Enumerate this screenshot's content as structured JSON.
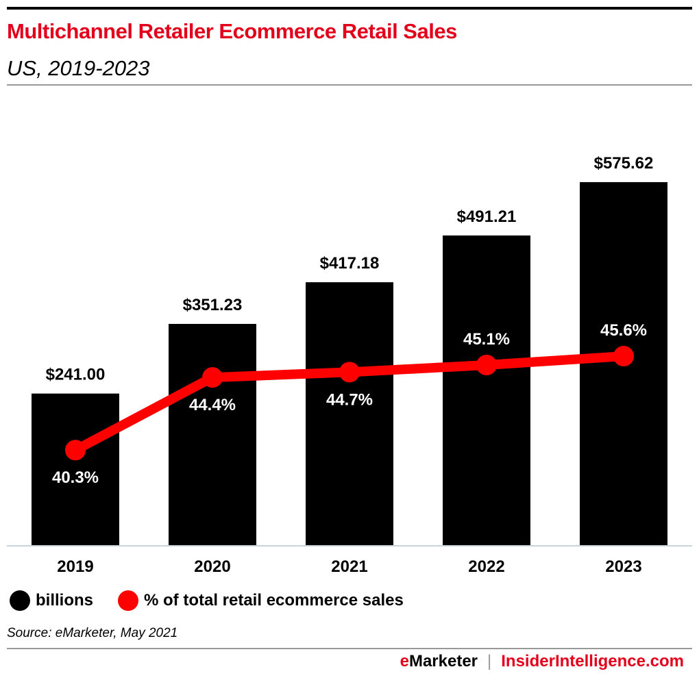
{
  "header": {
    "title": "Multichannel Retailer Ecommerce Retail Sales",
    "subtitle": "US, 2019-2023"
  },
  "colors": {
    "title": "#e3001b",
    "bars": "#000000",
    "line": "#ff0000",
    "baseline": "#c8d3dc"
  },
  "chart_data": {
    "type": "bar+line",
    "categories": [
      "2019",
      "2020",
      "2021",
      "2022",
      "2023"
    ],
    "series": [
      {
        "name": "billions",
        "type": "bar",
        "values": [
          241.0,
          351.23,
          417.18,
          491.21,
          575.62
        ],
        "labels": [
          "$241.00",
          "$351.23",
          "$417.18",
          "$491.21",
          "$575.62"
        ],
        "ylim": [
          0,
          620
        ]
      },
      {
        "name": "% of total retail ecommerce sales",
        "type": "line",
        "values": [
          40.3,
          44.4,
          44.7,
          45.1,
          45.6
        ],
        "labels": [
          "40.3%",
          "44.4%",
          "44.7%",
          "45.1%",
          "45.6%"
        ],
        "ylim": [
          34.9,
          57.0
        ]
      }
    ],
    "grid": false,
    "legend": "bottom-left"
  },
  "legend": {
    "bars": "billions",
    "line": "% of total retail ecommerce sales"
  },
  "source": "Source: eMarketer, May 2021",
  "footer": {
    "brand_e": "e",
    "brand_rest": "Marketer",
    "separator": "|",
    "site": "InsiderIntelligence.com"
  }
}
